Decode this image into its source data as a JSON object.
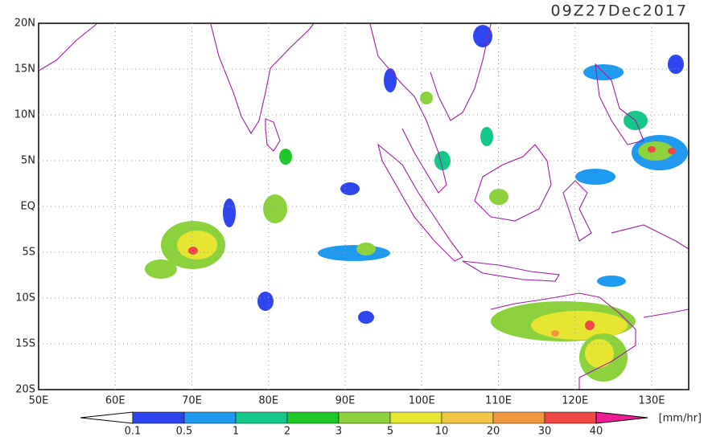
{
  "title": "09Z27Dec2017",
  "map": {
    "lat_labels": [
      "20N",
      "15N",
      "10N",
      "5N",
      "EQ",
      "5S",
      "10S",
      "15S",
      "20S"
    ],
    "lon_labels": [
      "50E",
      "60E",
      "70E",
      "80E",
      "90E",
      "100E",
      "110E",
      "120E",
      "130E"
    ]
  },
  "colorbar": {
    "ticks": [
      0.1,
      0.5,
      1,
      2,
      3,
      5,
      10,
      20,
      30,
      40
    ],
    "colors": [
      "#2e46f0",
      "#1e9af0",
      "#14c88c",
      "#1ec828",
      "#8cd23c",
      "#e6e632",
      "#f0c846",
      "#f0963c",
      "#f04646"
    ],
    "under_color": "#ffffff",
    "over_color": "#f01e96",
    "unit": "[mm/hr]"
  }
}
